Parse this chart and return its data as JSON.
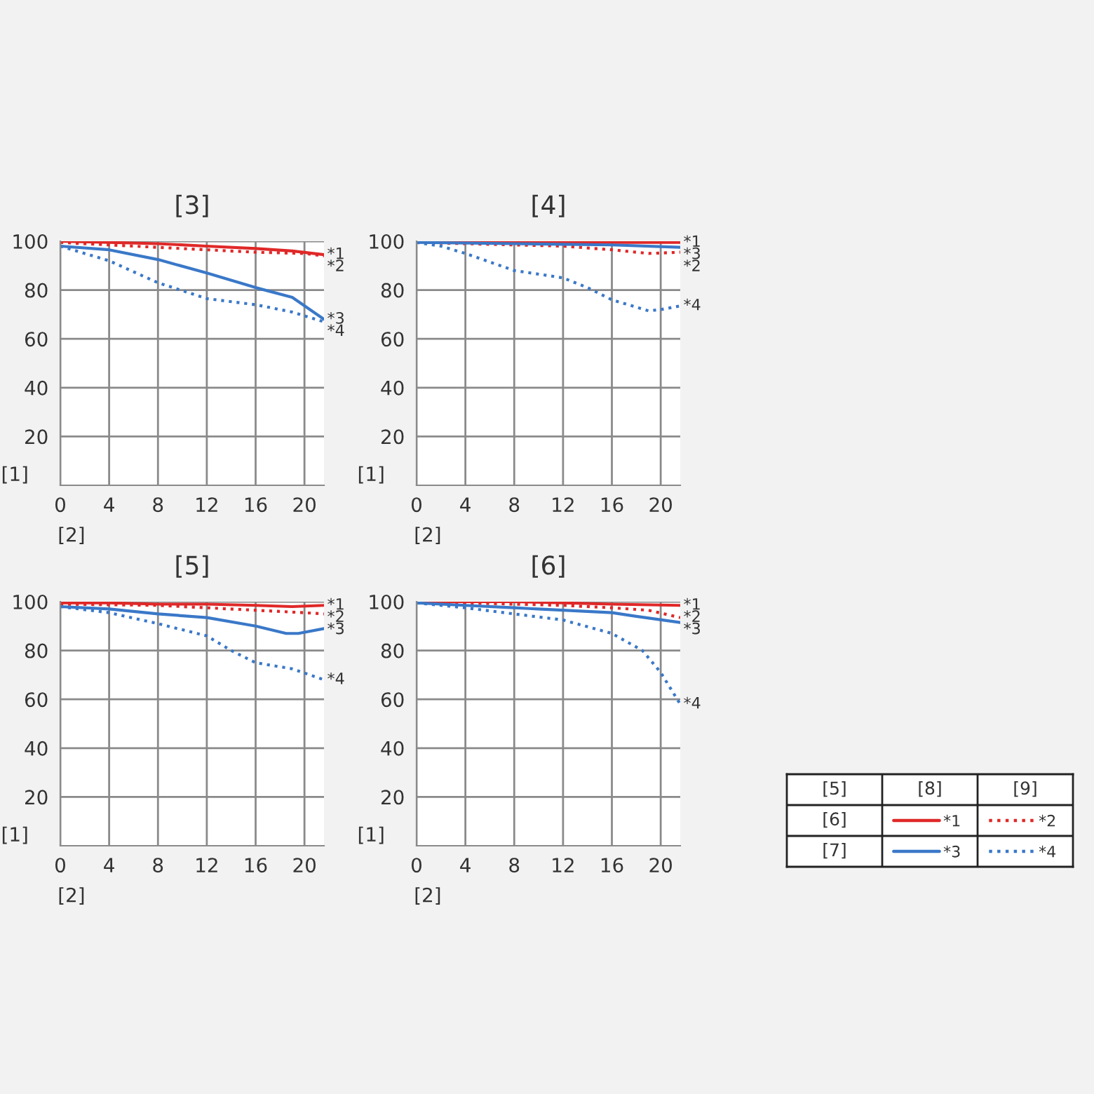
{
  "chart_data": [
    {
      "type": "line",
      "title": "[3]",
      "xlabel": "[2]",
      "ylabel": "[1]",
      "xlim": [
        0,
        21.6
      ],
      "xticks": [
        0,
        4,
        8,
        12,
        16,
        20
      ],
      "ylim": [
        0,
        100
      ],
      "yticks": [
        20,
        40,
        60,
        80,
        100
      ],
      "grid": true,
      "series": [
        {
          "name": "*1",
          "color": "#e02828",
          "line_style": "solid",
          "x": [
            0,
            4,
            8,
            12,
            16,
            19,
            21.6
          ],
          "values": [
            100,
            99.5,
            99,
            98,
            97,
            96,
            94.5
          ]
        },
        {
          "name": "*2",
          "color": "#e02828",
          "line_style": "dotted",
          "x": [
            0,
            4,
            8,
            12,
            16,
            20,
            21.6
          ],
          "values": [
            99.5,
            98.5,
            97.5,
            96.5,
            95.5,
            95,
            94
          ]
        },
        {
          "name": "*3",
          "color": "#3a78c8",
          "line_style": "solid",
          "x": [
            0,
            4,
            8,
            12,
            16,
            19,
            21.6
          ],
          "values": [
            98,
            96.5,
            92.5,
            87,
            81,
            77,
            68
          ]
        },
        {
          "name": "*4",
          "color": "#3a78c8",
          "line_style": "dotted",
          "x": [
            0,
            4,
            8,
            12,
            16,
            19,
            21.6
          ],
          "values": [
            98,
            92,
            83,
            76.5,
            74,
            71,
            67
          ]
        }
      ]
    },
    {
      "type": "line",
      "title": "[4]",
      "xlabel": "[2]",
      "ylabel": "[1]",
      "xlim": [
        0,
        21.6
      ],
      "xticks": [
        0,
        4,
        8,
        12,
        16,
        20
      ],
      "ylim": [
        0,
        100
      ],
      "yticks": [
        20,
        40,
        60,
        80,
        100
      ],
      "grid": true,
      "series": [
        {
          "name": "*1",
          "color": "#e02828",
          "line_style": "solid",
          "x": [
            0,
            8,
            16,
            21.6
          ],
          "values": [
            100,
            100,
            99.5,
            99.5
          ]
        },
        {
          "name": "*2",
          "color": "#e02828",
          "line_style": "dotted",
          "x": [
            0,
            4,
            8,
            12,
            16,
            19,
            21.6
          ],
          "values": [
            99.5,
            99,
            98.5,
            98,
            96.5,
            95,
            95.5
          ]
        },
        {
          "name": "*3",
          "color": "#3a78c8",
          "line_style": "solid",
          "x": [
            0,
            8,
            16,
            21.6
          ],
          "values": [
            99.5,
            99,
            98.5,
            97.5
          ]
        },
        {
          "name": "*4",
          "color": "#3a78c8",
          "line_style": "dotted",
          "x": [
            0,
            2,
            4,
            8,
            12,
            14,
            16,
            19,
            20,
            21.6
          ],
          "values": [
            99.5,
            98,
            95,
            88,
            85,
            81,
            76,
            71.5,
            72,
            73.5
          ]
        }
      ]
    },
    {
      "type": "line",
      "title": "[5]",
      "xlabel": "[2]",
      "ylabel": "[1]",
      "xlim": [
        0,
        21.6
      ],
      "xticks": [
        0,
        4,
        8,
        12,
        16,
        20
      ],
      "ylim": [
        0,
        100
      ],
      "yticks": [
        20,
        40,
        60,
        80,
        100
      ],
      "grid": true,
      "series": [
        {
          "name": "*1",
          "color": "#e02828",
          "line_style": "solid",
          "x": [
            0,
            4,
            8,
            12,
            16,
            19,
            21.6
          ],
          "values": [
            99.5,
            99.5,
            99,
            99,
            98.5,
            98,
            98.5
          ]
        },
        {
          "name": "*2",
          "color": "#e02828",
          "line_style": "dotted",
          "x": [
            0,
            8,
            12,
            16,
            20,
            21.6
          ],
          "values": [
            99,
            98.5,
            97.5,
            96.5,
            95.5,
            95
          ]
        },
        {
          "name": "*3",
          "color": "#3a78c8",
          "line_style": "solid",
          "x": [
            0,
            4,
            8,
            12,
            16,
            18.5,
            19.5,
            21.6
          ],
          "values": [
            98,
            97,
            95,
            93.5,
            90,
            87,
            87,
            89
          ]
        },
        {
          "name": "*4",
          "color": "#3a78c8",
          "line_style": "dotted",
          "x": [
            0,
            4,
            8,
            12,
            14,
            16,
            19,
            21.6
          ],
          "values": [
            98,
            95.5,
            91,
            86,
            80,
            75,
            72.5,
            68
          ]
        }
      ]
    },
    {
      "type": "line",
      "title": "[6]",
      "xlabel": "[2]",
      "ylabel": "[1]",
      "xlim": [
        0,
        21.6
      ],
      "xticks": [
        0,
        4,
        8,
        12,
        16,
        20
      ],
      "ylim": [
        0,
        100
      ],
      "yticks": [
        20,
        40,
        60,
        80,
        100
      ],
      "grid": true,
      "legend": "right",
      "annotations": [
        "[5]",
        "[8]",
        "[9]",
        "[6]",
        "[7]"
      ],
      "series": [
        {
          "name": "*1",
          "color": "#e02828",
          "line_style": "solid",
          "x": [
            0,
            8,
            12,
            16,
            21.6
          ],
          "values": [
            100,
            100,
            99.5,
            99,
            98.5
          ]
        },
        {
          "name": "*2",
          "color": "#e02828",
          "line_style": "dotted",
          "x": [
            0,
            8,
            12,
            16,
            19,
            21.6
          ],
          "values": [
            100,
            99,
            98.5,
            97.5,
            96.5,
            93.5
          ]
        },
        {
          "name": "*3",
          "color": "#3a78c8",
          "line_style": "solid",
          "x": [
            0,
            4,
            8,
            12,
            16,
            18,
            21.6
          ],
          "values": [
            99.5,
            98.5,
            97.5,
            96.5,
            95.5,
            94,
            91.5
          ]
        },
        {
          "name": "*4",
          "color": "#3a78c8",
          "line_style": "dotted",
          "x": [
            0,
            4,
            8,
            12,
            16,
            18.5,
            20,
            21.6
          ],
          "values": [
            99.5,
            97.5,
            95,
            92.5,
            87,
            80,
            71,
            58
          ]
        }
      ]
    }
  ]
}
